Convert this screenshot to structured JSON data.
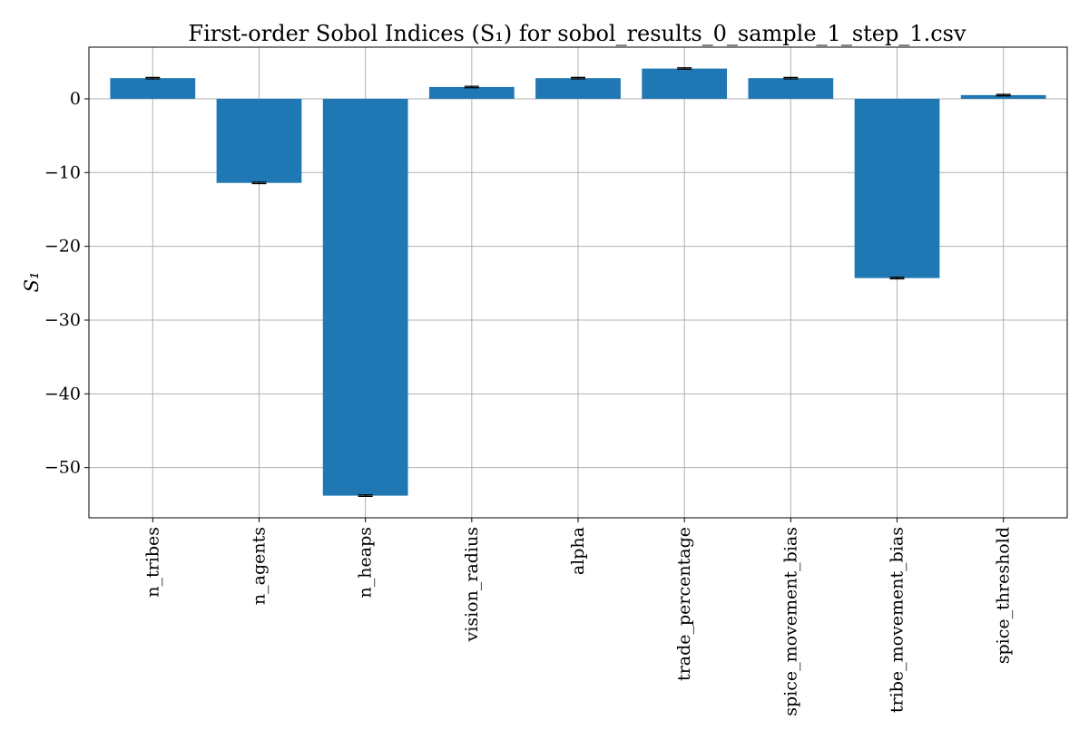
{
  "chart_data": {
    "type": "bar",
    "title": "First-order Sobol Indices (S₁) for sobol_results_0_sample_1_step_1.csv",
    "ylabel": "S₁",
    "xlabel": "",
    "categories": [
      "n_tribes",
      "n_agents",
      "n_heaps",
      "vision_radius",
      "alpha",
      "trade_percentage",
      "spice_movement_bias",
      "tribe_movement_bias",
      "spice_threshold"
    ],
    "values": [
      2.8,
      -11.4,
      -53.8,
      1.6,
      2.8,
      4.1,
      2.8,
      -24.3,
      0.5
    ],
    "error": [
      0.1,
      0.1,
      0.1,
      0.1,
      0.1,
      0.1,
      0.1,
      0.1,
      0.1
    ],
    "ylim": [
      -56.8,
      7.0
    ],
    "yticks": [
      0,
      -10,
      -20,
      -30,
      -40,
      -50
    ],
    "ytick_labels": [
      "0",
      "−10",
      "−20",
      "−30",
      "−40",
      "−50"
    ],
    "grid": true,
    "color": "#1f77b4",
    "error_color": "#000000"
  }
}
